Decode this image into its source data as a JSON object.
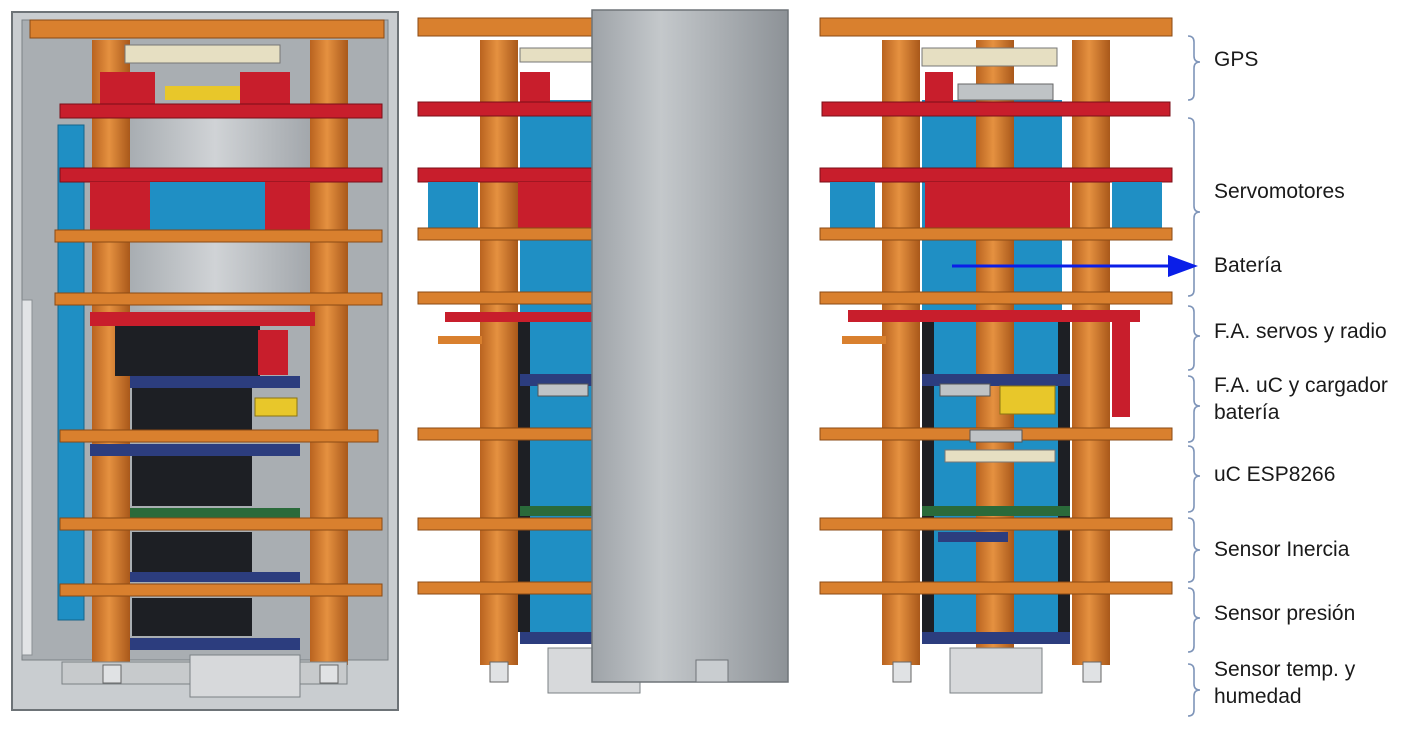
{
  "labels": {
    "gps": "GPS",
    "servomotores": "Servomotores",
    "bateria": "Batería",
    "fa_servos": "F.A. servos y radio",
    "fa_uc_line1": "F.A. uC y cargador",
    "fa_uc_line2": "batería",
    "uc": "uC ESP8266",
    "inercia": "Sensor Inercia",
    "presion": "Sensor presión",
    "temp_line1": "Sensor temp. y",
    "temp_line2": "humedad"
  },
  "colors": {
    "orange": "#d9802e",
    "orange_dark": "#a9581a",
    "red": "#c81e2c",
    "blue": "#1f8fc4",
    "navy": "#2c3d7e",
    "black": "#1d1f24",
    "gray": "#bfc3c6",
    "yellow": "#e8c72a",
    "green": "#2a6a3a",
    "arrow": "#0a1ee8",
    "brace": "#7f95b9"
  }
}
